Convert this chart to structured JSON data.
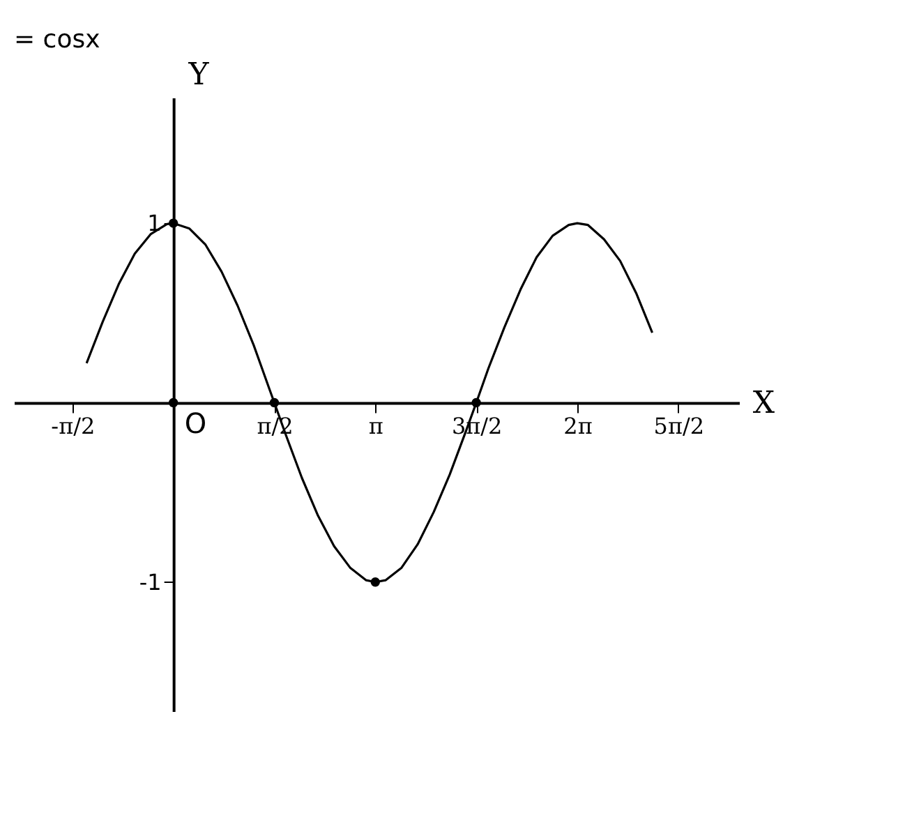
{
  "chart_data": {
    "type": "line",
    "title": "= cosx",
    "xlabel": "X",
    "ylabel": "Y",
    "xlim": [
      -2.48,
      8.8
    ],
    "ylim": [
      -1.72,
      1.7
    ],
    "xticks": [
      {
        "value": -1.5708,
        "label": "-π/2"
      },
      {
        "value": 1.5708,
        "label": "π/2"
      },
      {
        "value": 3.1416,
        "label": "π"
      },
      {
        "value": 4.7124,
        "label": "3π/2"
      },
      {
        "value": 6.2832,
        "label": "2π"
      },
      {
        "value": 7.854,
        "label": "5π/2"
      }
    ],
    "yticks": [
      {
        "value": -1,
        "label": "-1"
      },
      {
        "value": 1,
        "label": "1"
      }
    ],
    "grid": false,
    "annotations": [
      {
        "text": "O",
        "x": 0,
        "y": 0
      }
    ],
    "series": [
      {
        "color": "#000000",
        "marker": "none",
        "x": [
          -1.35,
          -1.1,
          -0.85,
          -0.6,
          -0.35,
          -0.1,
          0,
          0.25,
          0.5,
          0.75,
          1.0,
          1.25,
          1.5,
          1.5708,
          1.75,
          2.0,
          2.25,
          2.5,
          2.75,
          3.0,
          3.1416,
          3.3,
          3.55,
          3.8,
          4.05,
          4.3,
          4.55,
          4.7124,
          4.9,
          5.15,
          5.4,
          5.65,
          5.9,
          6.15,
          6.2832,
          6.45,
          6.7,
          6.95,
          7.2,
          7.45
        ],
        "values": [
          0.22,
          0.45,
          0.66,
          0.83,
          0.94,
          0.995,
          1,
          0.97,
          0.88,
          0.73,
          0.54,
          0.32,
          0.07,
          0,
          -0.18,
          -0.42,
          -0.63,
          -0.8,
          -0.92,
          -0.99,
          -1,
          -0.99,
          -0.92,
          -0.79,
          -0.61,
          -0.4,
          -0.16,
          0,
          0.19,
          0.42,
          0.63,
          0.81,
          0.93,
          0.99,
          1,
          0.99,
          0.91,
          0.79,
          0.61,
          0.39
        ]
      },
      {
        "type": "scatter",
        "color": "#000000",
        "marker": "circle",
        "x": [
          0,
          0,
          1.5708,
          3.1416,
          4.7124
        ],
        "values": [
          1,
          0,
          0,
          -1,
          0
        ]
      }
    ]
  }
}
